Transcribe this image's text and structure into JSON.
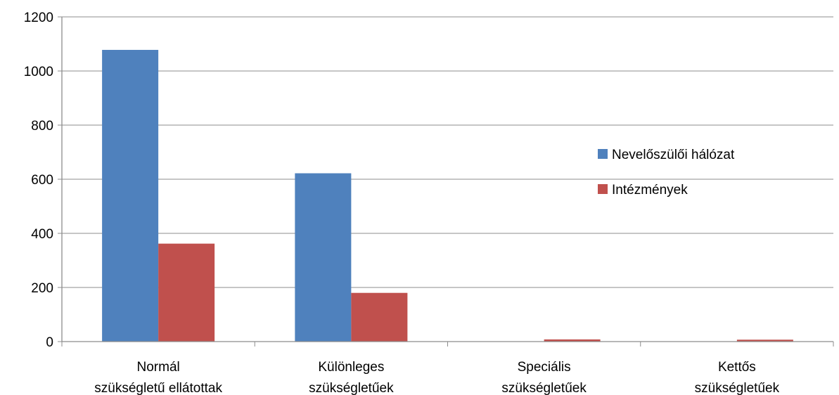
{
  "chart_data": {
    "type": "bar",
    "categories": [
      [
        "Normál",
        "szükségletű ellátottak"
      ],
      [
        "Különleges",
        "szükségletűek"
      ],
      [
        "Speciális",
        "szükségletűek"
      ],
      [
        "Kettős",
        "szükségletűek"
      ]
    ],
    "series": [
      {
        "name": "Nevelőszülői hálózat",
        "color": "#4f81bd",
        "values": [
          1078,
          622,
          0,
          0
        ]
      },
      {
        "name": "Intézmények",
        "color": "#c0504d",
        "values": [
          362,
          180,
          8,
          7
        ]
      }
    ],
    "ylim": [
      0,
      1200
    ],
    "yticks": [
      0,
      200,
      400,
      600,
      800,
      1000,
      1200
    ],
    "grid": true,
    "legend_position": "right"
  }
}
